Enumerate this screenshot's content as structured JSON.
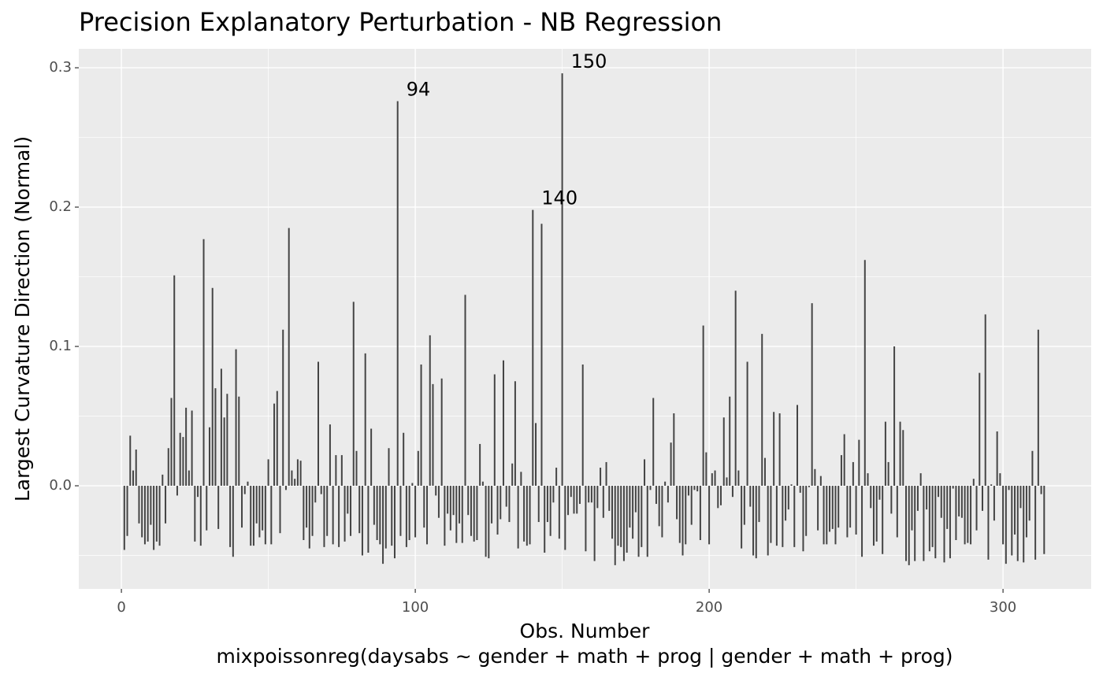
{
  "chart_data": {
    "type": "needle",
    "title": "Precision Explanatory Perturbation - NB Regression",
    "xlabel": "Obs. Number",
    "caption": "mixpoissonreg(daysabs ~ gender + math + prog | gender + math + prog)",
    "ylabel": "Largest Curvature Direction (Normal)",
    "color": "#444444",
    "grid": true,
    "xlim": [
      -14.5,
      330
    ],
    "ylim": [
      -0.074,
      0.3136
    ],
    "xticks": [
      0,
      100,
      200,
      300
    ],
    "yticks": [
      {
        "value": 0,
        "label": "0.0"
      },
      0.1,
      0.2,
      0.3
    ],
    "x_minor_grid": [
      50,
      150,
      250
    ],
    "y_minor_grid": [
      -0.05,
      0.05,
      0.15,
      0.25
    ],
    "annotations": [
      {
        "text": "94",
        "x": 94,
        "y": 0.276
      },
      {
        "text": "150",
        "x": 150,
        "y": 0.296
      },
      {
        "text": "140",
        "x": 140,
        "y": 0.198
      }
    ],
    "x": [
      1,
      2,
      3,
      4,
      5,
      6,
      7,
      8,
      9,
      10,
      11,
      12,
      13,
      14,
      15,
      16,
      17,
      18,
      19,
      20,
      21,
      22,
      23,
      24,
      25,
      26,
      27,
      28,
      29,
      30,
      31,
      32,
      33,
      34,
      35,
      36,
      37,
      38,
      39,
      40,
      41,
      42,
      43,
      44,
      45,
      46,
      47,
      48,
      49,
      50,
      51,
      52,
      53,
      54,
      55,
      56,
      57,
      58,
      59,
      60,
      61,
      62,
      63,
      64,
      65,
      66,
      67,
      68,
      69,
      70,
      71,
      72,
      73,
      74,
      75,
      76,
      77,
      78,
      79,
      80,
      81,
      82,
      83,
      84,
      85,
      86,
      87,
      88,
      89,
      90,
      91,
      92,
      93,
      94,
      95,
      96,
      97,
      98,
      99,
      100,
      101,
      102,
      103,
      104,
      105,
      106,
      107,
      108,
      109,
      110,
      111,
      112,
      113,
      114,
      115,
      116,
      117,
      118,
      119,
      120,
      121,
      122,
      123,
      124,
      125,
      126,
      127,
      128,
      129,
      130,
      131,
      132,
      133,
      134,
      135,
      136,
      137,
      138,
      139,
      140,
      141,
      142,
      143,
      144,
      145,
      146,
      147,
      148,
      149,
      150,
      151,
      152,
      153,
      154,
      155,
      156,
      157,
      158,
      159,
      160,
      161,
      162,
      163,
      164,
      165,
      166,
      167,
      168,
      169,
      170,
      171,
      172,
      173,
      174,
      175,
      176,
      177,
      178,
      179,
      180,
      181,
      182,
      183,
      184,
      185,
      186,
      187,
      188,
      189,
      190,
      191,
      192,
      193,
      194,
      195,
      196,
      197,
      198,
      199,
      200,
      201,
      202,
      203,
      204,
      205,
      206,
      207,
      208,
      209,
      210,
      211,
      212,
      213,
      214,
      215,
      216,
      217,
      218,
      219,
      220,
      221,
      222,
      223,
      224,
      225,
      226,
      227,
      228,
      229,
      230,
      231,
      232,
      233,
      234,
      235,
      236,
      237,
      238,
      239,
      240,
      241,
      242,
      243,
      244,
      245,
      246,
      247,
      248,
      249,
      250,
      251,
      252,
      253,
      254,
      255,
      256,
      257,
      258,
      259,
      260,
      261,
      262,
      263,
      264,
      265,
      266,
      267,
      268,
      269,
      270,
      271,
      272,
      273,
      274,
      275,
      276,
      277,
      278,
      279,
      280,
      281,
      282,
      283,
      284,
      285,
      286,
      287,
      288,
      289,
      290,
      291,
      292,
      293,
      294,
      295,
      296,
      297,
      298,
      299,
      300,
      301,
      302,
      303,
      304,
      305,
      306,
      307,
      308,
      309,
      310,
      311,
      312,
      313,
      314
    ],
    "values": [
      -0.046,
      -0.036,
      0.036,
      0.011,
      0.026,
      -0.027,
      -0.037,
      -0.042,
      -0.04,
      -0.028,
      -0.046,
      -0.04,
      -0.043,
      0.008,
      -0.027,
      0.027,
      0.063,
      0.151,
      -0.007,
      0.038,
      0.035,
      0.056,
      0.011,
      0.054,
      -0.04,
      -0.008,
      -0.043,
      0.177,
      -0.032,
      0.042,
      0.142,
      0.07,
      -0.031,
      0.084,
      0.049,
      0.066,
      -0.044,
      -0.051,
      0.098,
      0.064,
      -0.03,
      -0.006,
      0.003,
      -0.043,
      -0.043,
      -0.027,
      -0.037,
      -0.032,
      -0.042,
      0.019,
      -0.042,
      0.059,
      0.068,
      -0.034,
      0.112,
      -0.003,
      0.185,
      0.011,
      0.005,
      0.019,
      0.018,
      -0.039,
      -0.03,
      -0.045,
      -0.036,
      -0.012,
      0.089,
      -0.006,
      -0.044,
      -0.036,
      0.044,
      -0.042,
      0.022,
      -0.044,
      0.022,
      -0.04,
      -0.02,
      -0.036,
      0.132,
      0.025,
      -0.034,
      -0.05,
      0.095,
      -0.048,
      0.041,
      -0.028,
      -0.039,
      -0.042,
      -0.056,
      -0.045,
      0.027,
      -0.043,
      -0.052,
      0.276,
      -0.036,
      0.038,
      -0.044,
      -0.039,
      0.002,
      -0.037,
      0.025,
      0.087,
      -0.03,
      -0.042,
      0.108,
      0.073,
      -0.007,
      -0.023,
      0.077,
      -0.043,
      -0.02,
      -0.032,
      -0.021,
      -0.041,
      -0.027,
      -0.041,
      0.137,
      -0.021,
      -0.036,
      -0.04,
      -0.039,
      0.03,
      0.003,
      -0.051,
      -0.052,
      -0.027,
      0.08,
      -0.035,
      -0.024,
      0.09,
      -0.015,
      -0.026,
      0.016,
      0.075,
      -0.045,
      0.01,
      -0.04,
      -0.043,
      -0.042,
      0.198,
      0.045,
      -0.026,
      0.188,
      -0.048,
      -0.026,
      -0.036,
      -0.012,
      0.013,
      -0.038,
      0.296,
      -0.046,
      -0.021,
      -0.008,
      -0.02,
      -0.02,
      -0.013,
      0.087,
      -0.047,
      -0.012,
      -0.012,
      -0.054,
      -0.016,
      0.013,
      -0.023,
      0.017,
      -0.018,
      -0.038,
      -0.057,
      -0.043,
      -0.044,
      -0.054,
      -0.048,
      -0.03,
      -0.038,
      -0.019,
      -0.051,
      -0.044,
      0.019,
      -0.051,
      -0.003,
      0.063,
      -0.013,
      -0.029,
      -0.037,
      0.003,
      -0.012,
      0.031,
      0.052,
      -0.024,
      -0.041,
      -0.05,
      -0.042,
      -0.007,
      -0.028,
      -0.003,
      -0.004,
      -0.039,
      0.115,
      0.024,
      -0.042,
      0.009,
      0.011,
      -0.016,
      -0.014,
      0.049,
      0.006,
      0.064,
      -0.008,
      0.14,
      0.011,
      -0.045,
      -0.028,
      0.089,
      -0.015,
      -0.05,
      -0.052,
      -0.026,
      0.109,
      0.02,
      -0.05,
      -0.041,
      0.053,
      -0.043,
      0.052,
      -0.044,
      -0.025,
      -0.017,
      0.001,
      -0.044,
      0.058,
      -0.005,
      -0.047,
      -0.036,
      -0.001,
      0.131,
      0.012,
      -0.032,
      0.007,
      -0.042,
      -0.042,
      -0.033,
      -0.031,
      -0.042,
      -0.03,
      0.022,
      0.037,
      -0.037,
      -0.03,
      0.017,
      -0.035,
      0.033,
      -0.051,
      0.162,
      0.009,
      -0.016,
      -0.043,
      -0.04,
      -0.01,
      -0.049,
      0.046,
      0.017,
      -0.02,
      0.1,
      -0.037,
      0.046,
      0.04,
      -0.054,
      -0.057,
      -0.032,
      -0.054,
      -0.018,
      0.009,
      -0.054,
      -0.017,
      -0.047,
      -0.044,
      -0.052,
      -0.008,
      -0.023,
      -0.055,
      -0.031,
      -0.052,
      -0.002,
      -0.039,
      -0.022,
      -0.023,
      -0.042,
      -0.041,
      -0.042,
      0.005,
      -0.032,
      0.081,
      -0.018,
      0.123,
      -0.053,
      0.001,
      -0.025,
      0.039,
      0.009,
      -0.042,
      -0.056,
      -0.003,
      -0.05,
      -0.035,
      -0.054,
      -0.016,
      -0.055,
      -0.037,
      -0.025,
      0.025,
      -0.053,
      0.112,
      -0.006,
      -0.049
    ]
  }
}
